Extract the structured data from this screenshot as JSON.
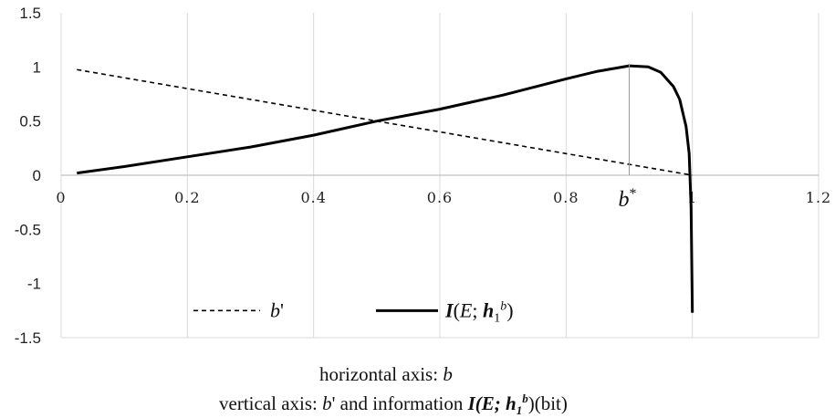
{
  "chart_data": {
    "type": "line",
    "title": "",
    "x_ticks": [
      "0",
      "0.2",
      "0.4",
      "0.6",
      "0.8",
      "1",
      "1.2"
    ],
    "y_ticks": [
      "1.5",
      "1",
      "0.5",
      "0",
      "-0.5",
      "-1",
      "-1.5"
    ],
    "xlim": [
      0,
      1.2
    ],
    "ylim": [
      -1.5,
      1.5
    ],
    "grid": "vertical",
    "legend_position": "bottom-center",
    "annotation": {
      "label": "b*",
      "x": 0.9
    },
    "series": [
      {
        "name": "b'",
        "style": "dashed",
        "color": "#000000",
        "x": [
          0.025,
          0.1,
          0.2,
          0.3,
          0.4,
          0.5,
          0.6,
          0.7,
          0.8,
          0.9,
          1.0
        ],
        "y": [
          0.975,
          0.9,
          0.8,
          0.7,
          0.6,
          0.5,
          0.4,
          0.3,
          0.2,
          0.1,
          0.0
        ]
      },
      {
        "name": "I(E; h1b)",
        "style": "solid",
        "color": "#000000",
        "x": [
          0.025,
          0.1,
          0.2,
          0.3,
          0.4,
          0.5,
          0.6,
          0.7,
          0.8,
          0.85,
          0.9,
          0.93,
          0.95,
          0.97,
          0.98,
          0.99,
          0.995,
          0.998,
          1.0
        ],
        "y": [
          0.02,
          0.08,
          0.17,
          0.26,
          0.37,
          0.5,
          0.61,
          0.74,
          0.89,
          0.96,
          1.01,
          1.0,
          0.95,
          0.82,
          0.7,
          0.45,
          0.2,
          -0.3,
          -1.27
        ]
      }
    ]
  },
  "caption": {
    "line1_prefix": "horizontal axis: ",
    "line1_var": "b",
    "line2_prefix": "vertical axis: ",
    "line2_var": "b",
    "line2_mid": "' and information ",
    "line2_formula": "I(E; h",
    "line2_sub": "1",
    "line2_sup": "b",
    "line2_close": ")",
    "line2_unit": "(bit)"
  }
}
